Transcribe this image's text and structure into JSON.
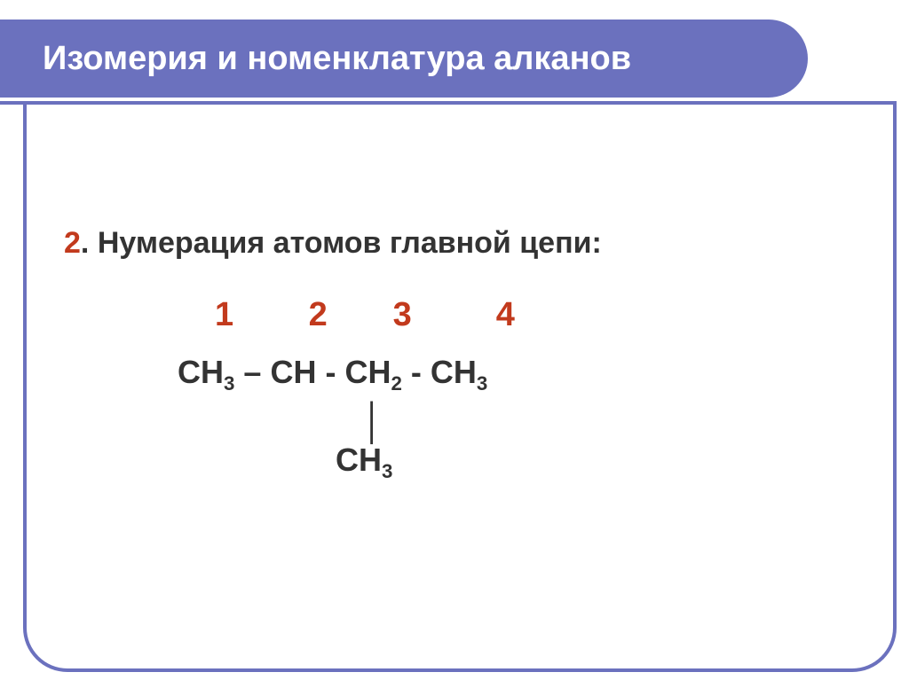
{
  "colors": {
    "title_bg": "#6b71be",
    "red": "#c23a1d",
    "text": "#333333",
    "white": "#ffffff"
  },
  "typography": {
    "title_fontsize": 38,
    "body_fontsize": 34,
    "numbers_fontsize": 38,
    "formula_fontsize": 36,
    "branch_fontsize": 36,
    "bond_fontsize": 40
  },
  "title": "Изомерия и номенклатура алканов",
  "step_number": "2",
  "step_label": ". Нумерация атомов главной цепи:",
  "chain_numbers": "1        2       3         4",
  "formula": {
    "c1": "CH",
    "c1_sub": "3",
    "sep1": " – ",
    "c2": "CH",
    "sep2": " - ",
    "c3": "CH",
    "c3_sub": "2",
    "sep3": " - ",
    "c4": "CH",
    "c4_sub": "3"
  },
  "bond_symbol": "│",
  "branch": "CH",
  "branch_sub": "3"
}
